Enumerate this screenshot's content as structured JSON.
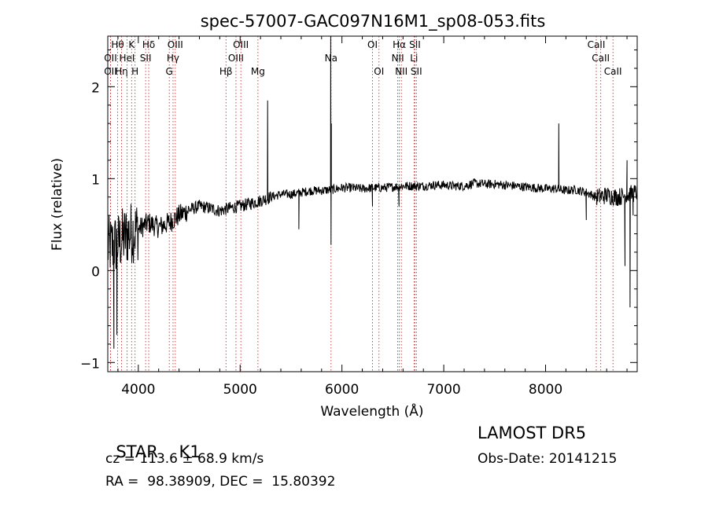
{
  "chart_data": {
    "type": "line",
    "title": "spec-57007-GAC097N16M1_sp08-053.fits",
    "xlabel": "Wavelength (Å)",
    "ylabel": "Flux (relative)",
    "xlim": [
      3700,
      8900
    ],
    "ylim": [
      -1.1,
      2.55
    ],
    "xticks": [
      4000,
      5000,
      6000,
      7000,
      8000
    ],
    "yticks": [
      -1,
      0,
      1,
      2
    ],
    "line_color": "#000000",
    "marker_color": "#b22222",
    "continuum": [
      [
        3700,
        0.25
      ],
      [
        3800,
        0.3
      ],
      [
        3900,
        0.4
      ],
      [
        4000,
        0.45
      ],
      [
        4100,
        0.52
      ],
      [
        4200,
        0.47
      ],
      [
        4300,
        0.52
      ],
      [
        4400,
        0.6
      ],
      [
        4500,
        0.66
      ],
      [
        4600,
        0.7
      ],
      [
        4700,
        0.68
      ],
      [
        4800,
        0.65
      ],
      [
        4900,
        0.68
      ],
      [
        5000,
        0.7
      ],
      [
        5100,
        0.73
      ],
      [
        5200,
        0.76
      ],
      [
        5300,
        0.8
      ],
      [
        5400,
        0.83
      ],
      [
        5500,
        0.83
      ],
      [
        5600,
        0.85
      ],
      [
        5700,
        0.87
      ],
      [
        5800,
        0.87
      ],
      [
        5900,
        0.88
      ],
      [
        6000,
        0.9
      ],
      [
        6100,
        0.9
      ],
      [
        6200,
        0.89
      ],
      [
        6300,
        0.9
      ],
      [
        6400,
        0.9
      ],
      [
        6500,
        0.91
      ],
      [
        6600,
        0.92
      ],
      [
        6700,
        0.92
      ],
      [
        6800,
        0.92
      ],
      [
        6900,
        0.93
      ],
      [
        7000,
        0.93
      ],
      [
        7100,
        0.92
      ],
      [
        7200,
        0.92
      ],
      [
        7300,
        0.95
      ],
      [
        7400,
        0.94
      ],
      [
        7500,
        0.94
      ],
      [
        7600,
        0.93
      ],
      [
        7700,
        0.92
      ],
      [
        7800,
        0.91
      ],
      [
        7900,
        0.9
      ],
      [
        8000,
        0.89
      ],
      [
        8100,
        0.89
      ],
      [
        8200,
        0.87
      ],
      [
        8300,
        0.88
      ],
      [
        8400,
        0.85
      ],
      [
        8500,
        0.8
      ],
      [
        8600,
        0.82
      ],
      [
        8700,
        0.8
      ],
      [
        8800,
        0.82
      ],
      [
        8900,
        0.85
      ]
    ],
    "features": [
      [
        5270,
        1.85
      ],
      [
        5577,
        0.45
      ],
      [
        5890,
        2.6
      ],
      [
        5893,
        0.28
      ],
      [
        5896,
        1.6
      ],
      [
        6300,
        0.7
      ],
      [
        6560,
        0.7
      ],
      [
        8130,
        1.6
      ],
      [
        8400,
        0.55
      ],
      [
        8780,
        0.05
      ],
      [
        8800,
        1.2
      ],
      [
        8830,
        -0.4
      ],
      [
        8860,
        0.6
      ],
      [
        3760,
        -0.85
      ],
      [
        3790,
        -0.7
      ]
    ],
    "line_markers": [
      {
        "x": 3727,
        "label": "OII",
        "row": 2
      },
      {
        "x": 3727,
        "label": "OII",
        "row": 3
      },
      {
        "x": 3797,
        "label": "Hθ",
        "row": 1
      },
      {
        "x": 3835,
        "label": "Hη",
        "row": 3
      },
      {
        "x": 3889,
        "label": "HeI",
        "row": 2
      },
      {
        "x": 3934,
        "label": "K",
        "row": 1
      },
      {
        "x": 3968,
        "label": "H",
        "row": 3
      },
      {
        "x": 4072,
        "label": "SII",
        "row": 2
      },
      {
        "x": 4102,
        "label": "Hδ",
        "row": 1
      },
      {
        "x": 4304,
        "label": "G",
        "row": 3
      },
      {
        "x": 4341,
        "label": "Hγ",
        "row": 2
      },
      {
        "x": 4363,
        "label": "OIII",
        "row": 1
      },
      {
        "x": 4861,
        "label": "Hβ",
        "row": 3
      },
      {
        "x": 4959,
        "label": "OIII",
        "row": 2
      },
      {
        "x": 5007,
        "label": "OIII",
        "row": 1
      },
      {
        "x": 5175,
        "label": "Mg",
        "row": 3
      },
      {
        "x": 5893,
        "label": "Na",
        "row": 2
      },
      {
        "x": 6300,
        "label": "OI",
        "row": 1
      },
      {
        "x": 6364,
        "label": "OI",
        "row": 3
      },
      {
        "x": 6548,
        "label": "NII",
        "row": 2
      },
      {
        "x": 6563,
        "label": "Hα",
        "row": 1
      },
      {
        "x": 6583,
        "label": "NII",
        "row": 3
      },
      {
        "x": 6708,
        "label": "Li",
        "row": 2
      },
      {
        "x": 6717,
        "label": "SII",
        "row": 1
      },
      {
        "x": 6731,
        "label": "SII",
        "row": 3
      },
      {
        "x": 8498,
        "label": "CaII",
        "row": 1
      },
      {
        "x": 8542,
        "label": "CaII",
        "row": 2
      },
      {
        "x": 8662,
        "label": "CaII",
        "row": 3
      }
    ]
  },
  "info": {
    "class_label": "STAR",
    "subclass": "K1",
    "survey": "LAMOST DR5",
    "redshift": "cz = 113.6 ± 68.9 km/s",
    "obs_date": "Obs-Date: 20141215",
    "coords": "RA =  98.38909, DEC =  15.80392"
  }
}
